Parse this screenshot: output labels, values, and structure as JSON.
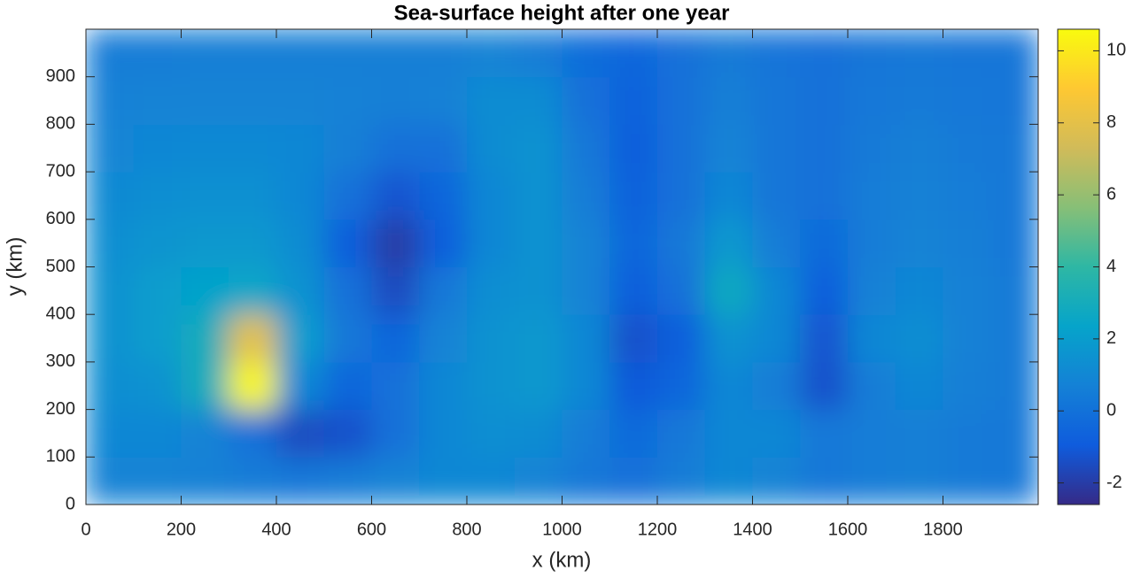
{
  "chart_data": {
    "type": "heatmap",
    "title": "Sea-surface height after one year",
    "x_label": "x (km)",
    "y_label": "y (km)",
    "xlim": [
      0,
      2000
    ],
    "ylim": [
      0,
      1000
    ],
    "xticks": [
      0,
      200,
      400,
      600,
      800,
      1000,
      1200,
      1400,
      1600,
      1800
    ],
    "yticks": [
      0,
      100,
      200,
      300,
      400,
      500,
      600,
      700,
      800,
      900
    ],
    "clim": [
      -2.6,
      10.6
    ],
    "cticks": [
      -2,
      0,
      2,
      4,
      6,
      8,
      10
    ],
    "colormap": [
      "#352a87",
      "#0f5cdd",
      "#1481d6",
      "#06a4ca",
      "#2eb7a4",
      "#87bf77",
      "#d1bb59",
      "#fec832",
      "#f9fb0e"
    ],
    "x": [
      50,
      150,
      250,
      350,
      450,
      550,
      650,
      750,
      850,
      950,
      1050,
      1150,
      1250,
      1350,
      1450,
      1550,
      1650,
      1750,
      1850,
      1950
    ],
    "y": [
      50,
      150,
      250,
      350,
      450,
      550,
      650,
      750,
      850,
      950
    ],
    "z": [
      [
        0.8,
        0.8,
        0.7,
        0.5,
        0.3,
        0.5,
        0.8,
        1,
        1,
        0.8,
        0.3,
        0,
        0.5,
        1,
        0.8,
        0.3,
        0.5,
        0.6,
        0.4,
        0.3
      ],
      [
        1,
        1,
        0.8,
        0,
        -1.5,
        -1.3,
        0,
        1,
        1.3,
        1.2,
        0.5,
        -0.3,
        0.3,
        1,
        1,
        0.3,
        0.5,
        0.6,
        0.4,
        0.3
      ],
      [
        1.3,
        1.5,
        3,
        10.5,
        1,
        -0.5,
        0,
        1,
        1.5,
        1.8,
        1,
        -1,
        -0.5,
        1,
        0.5,
        -1.3,
        0.5,
        1,
        0.6,
        0.4
      ],
      [
        1.5,
        2,
        3,
        8,
        2,
        0.3,
        -0.5,
        0.8,
        1.5,
        1.8,
        1,
        -1.3,
        -0.8,
        1.5,
        1,
        -1.2,
        1,
        1.3,
        0.7,
        0.4
      ],
      [
        1.5,
        2,
        2.3,
        2.5,
        1.5,
        0,
        -1.5,
        0.3,
        1.3,
        1.5,
        0.8,
        -0.8,
        0,
        2.8,
        1,
        -0.8,
        0.7,
        1,
        0.7,
        0.4
      ],
      [
        1.3,
        1.6,
        1.8,
        1.8,
        1.2,
        -0.8,
        -2,
        -0.8,
        1,
        1.5,
        0.8,
        -0.5,
        0.3,
        1.8,
        0.5,
        -0.3,
        0.5,
        0.8,
        0.6,
        0.3
      ],
      [
        1.1,
        1.3,
        1.4,
        1.4,
        1,
        0,
        -1.2,
        -0.5,
        1,
        1.5,
        0.5,
        -0.7,
        0,
        1,
        0.2,
        0,
        0.5,
        0.7,
        0.5,
        0.3
      ],
      [
        0.9,
        1,
        1.1,
        1.1,
        1,
        0.6,
        0,
        0,
        1.2,
        1.5,
        0.3,
        -0.8,
        0,
        0.8,
        0.2,
        0,
        0.4,
        0.6,
        0.4,
        0.3
      ],
      [
        0.7,
        0.8,
        0.8,
        0.8,
        0.8,
        0.7,
        0.6,
        0.7,
        1.2,
        1.2,
        0,
        -0.7,
        0,
        0.6,
        0.2,
        0,
        0.3,
        0.4,
        0.3,
        0.2
      ],
      [
        0.5,
        0.5,
        0.6,
        0.6,
        0.6,
        0.6,
        0.6,
        0.6,
        0.8,
        0.5,
        -0.2,
        -0.5,
        0,
        0.4,
        0.1,
        0,
        0.2,
        0.3,
        0.2,
        0.2
      ]
    ]
  }
}
